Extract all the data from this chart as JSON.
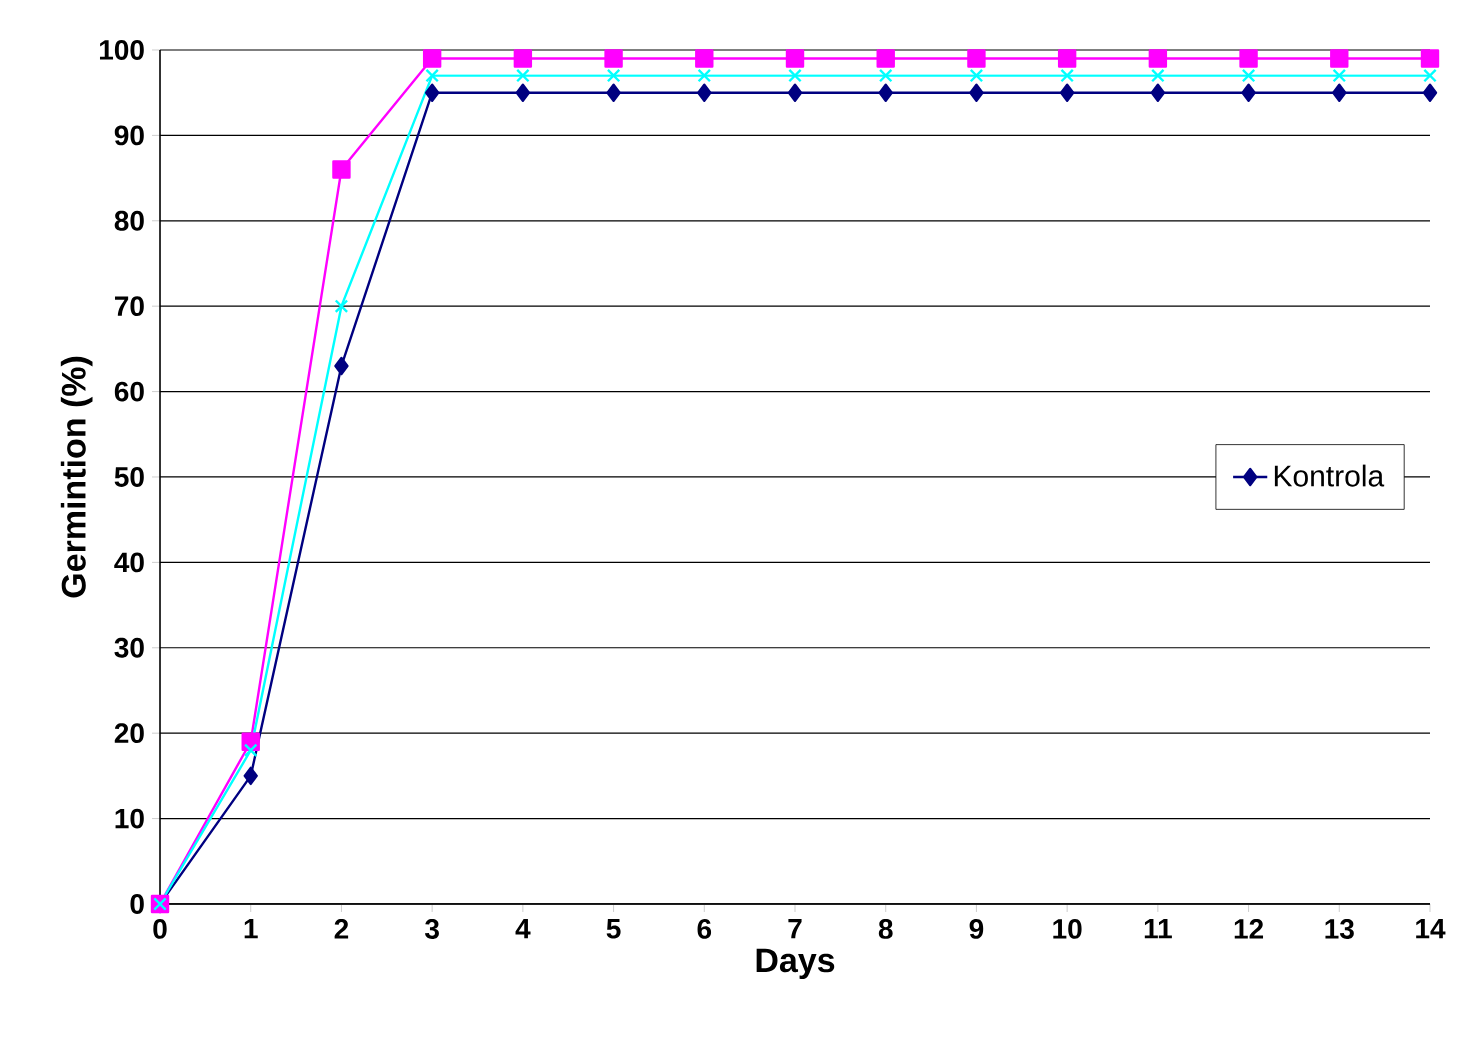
{
  "chart_data": {
    "type": "line",
    "xlabel": "Days",
    "ylabel": "Germintion (%)",
    "x": [
      0,
      1,
      2,
      3,
      4,
      5,
      6,
      7,
      8,
      9,
      10,
      11,
      12,
      13,
      14
    ],
    "series": [
      {
        "name": "Kontrola",
        "color": "#000080",
        "marker": "diamond",
        "values": [
          0,
          15,
          63,
          95,
          95,
          95,
          95,
          95,
          95,
          95,
          95,
          95,
          95,
          95,
          95
        ]
      },
      {
        "color": "#ff00ff",
        "marker": "square",
        "values": [
          0,
          19,
          86,
          99,
          99,
          99,
          99,
          99,
          99,
          99,
          99,
          99,
          99,
          99,
          99
        ]
      },
      {
        "color": "#00ffff",
        "marker": "cross",
        "values": [
          0,
          18,
          70,
          97,
          97,
          97,
          97,
          97,
          97,
          97,
          97,
          97,
          97,
          97,
          97
        ]
      }
    ],
    "xlim": [
      0,
      14
    ],
    "ylim": [
      0,
      100
    ],
    "xticks": [
      0,
      1,
      2,
      3,
      4,
      5,
      6,
      7,
      8,
      9,
      10,
      11,
      12,
      13,
      14
    ],
    "yticks": [
      0,
      10,
      20,
      30,
      40,
      50,
      60,
      70,
      80,
      90,
      100
    ],
    "grid": "y",
    "legend": "right",
    "line_style": "solid"
  }
}
